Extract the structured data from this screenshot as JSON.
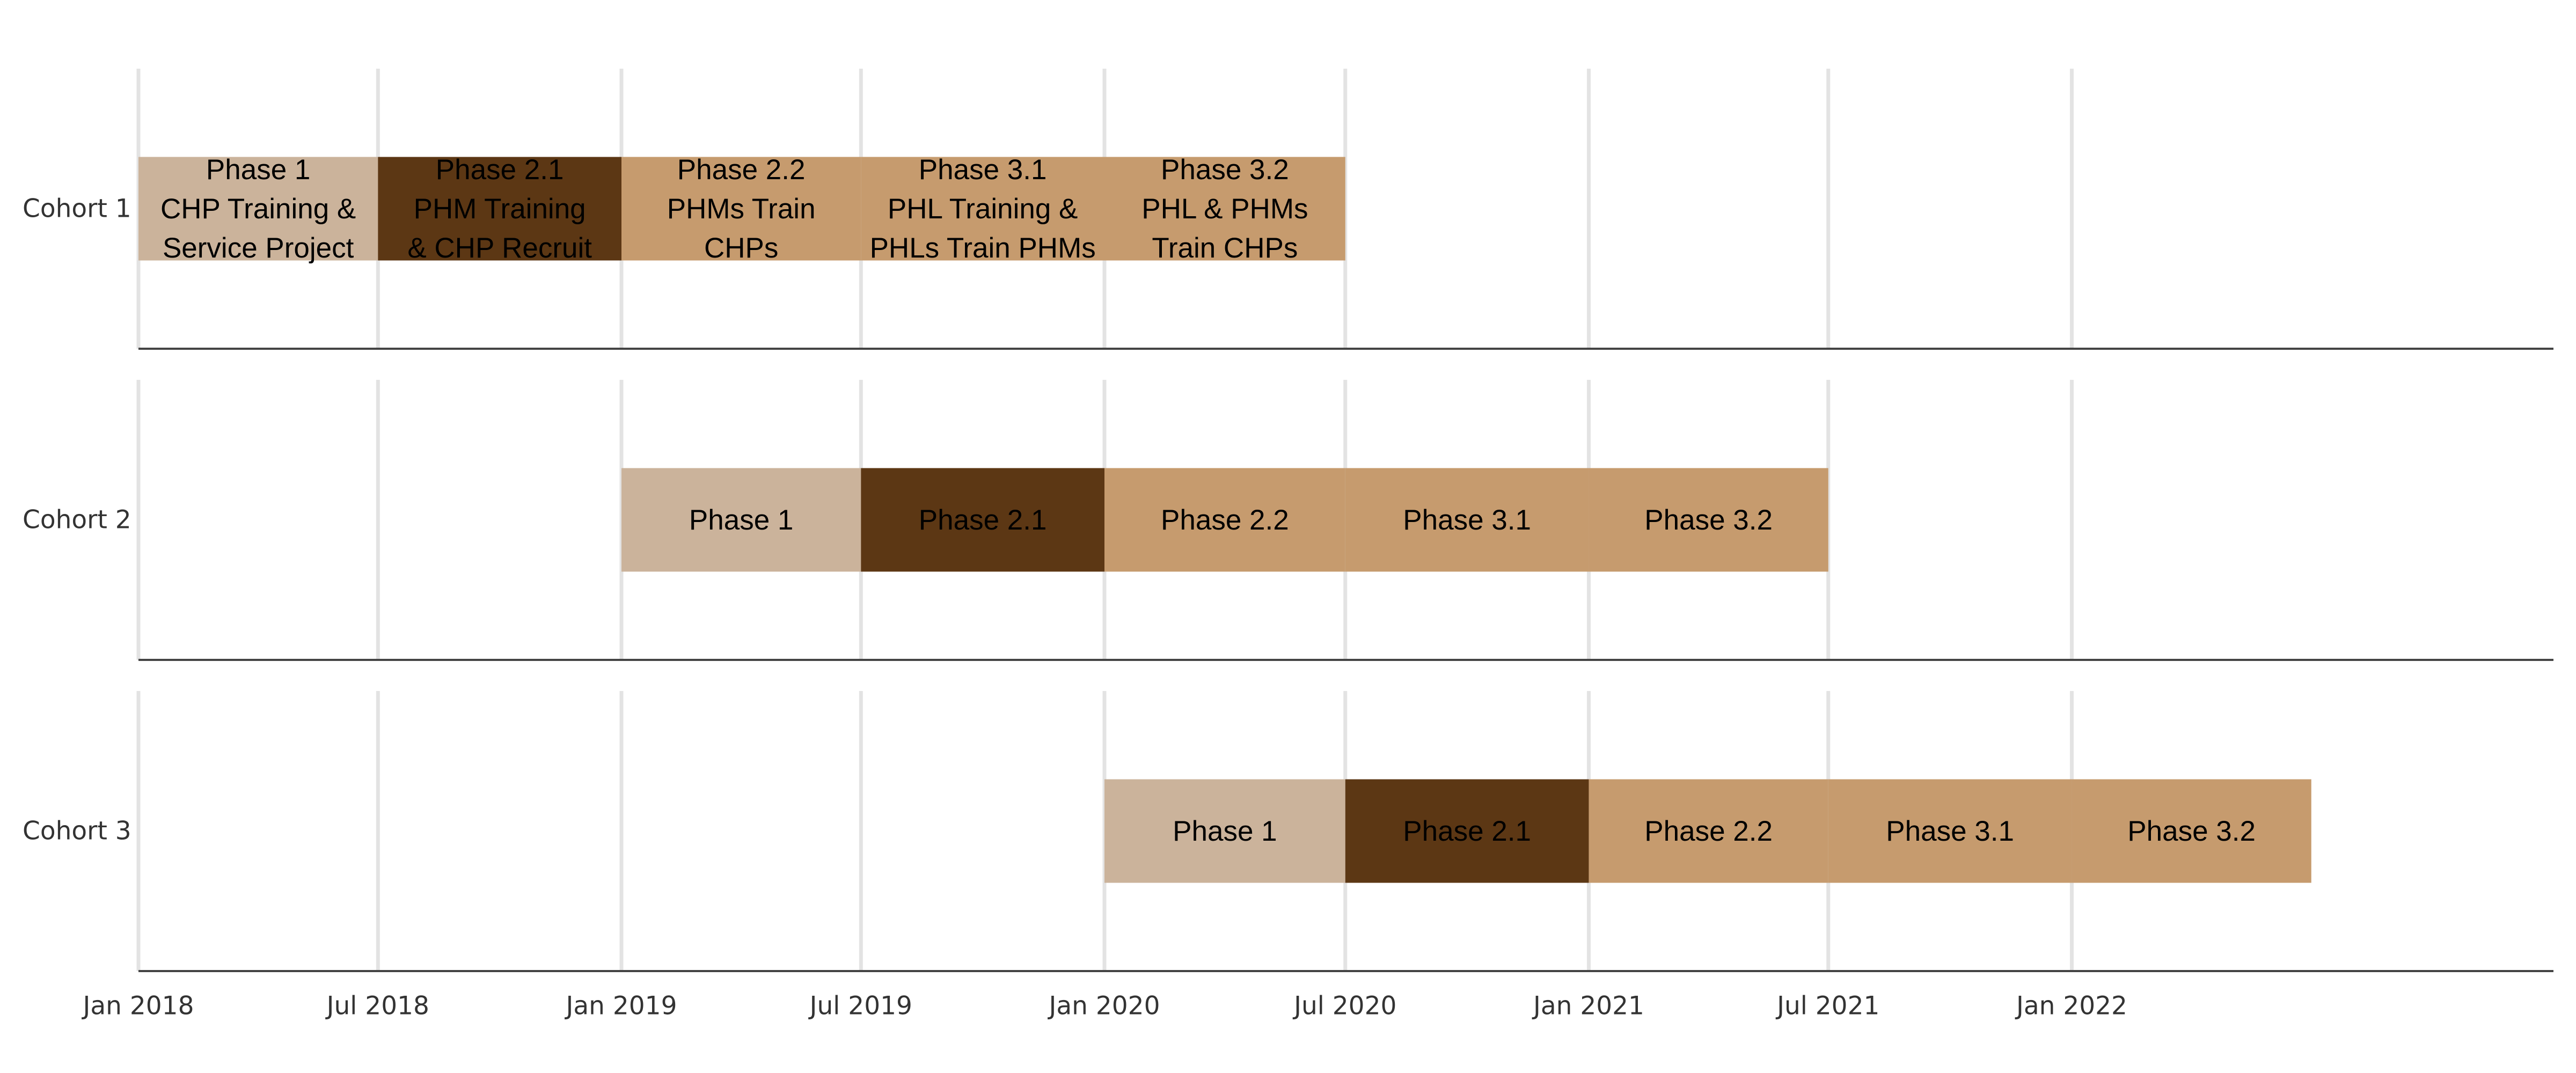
{
  "chart_data": {
    "type": "gantt",
    "x_axis": {
      "range": [
        "2018-01-01",
        "2022-12-31"
      ],
      "ticks": [
        "2018-01-01",
        "2018-07-01",
        "2019-01-01",
        "2019-07-01",
        "2020-01-01",
        "2020-07-01",
        "2021-01-01",
        "2021-07-01",
        "2022-01-01"
      ],
      "tick_labels": [
        "Jan 2018",
        "Jul 2018",
        "Jan 2019",
        "Jul 2019",
        "Jan 2020",
        "Jul 2020",
        "Jan 2021",
        "Jul 2021",
        "Jan 2022"
      ],
      "grid": true
    },
    "categories": [
      "Cohort 1",
      "Cohort 2",
      "Cohort 3"
    ],
    "tasks": [
      {
        "cohort": "Cohort 1",
        "label": "Phase 1\nCHP Training &\nService Project",
        "start": "2018-01-01",
        "end": "2018-07-01",
        "color": "#CBB39B"
      },
      {
        "cohort": "Cohort 1",
        "label": "Phase 2.1\nPHM Training\n& CHP Recruit",
        "start": "2018-07-01",
        "end": "2019-01-01",
        "color": "#5C3714"
      },
      {
        "cohort": "Cohort 1",
        "label": "Phase 2.2\nPHMs Train\nCHPs",
        "start": "2019-01-01",
        "end": "2019-07-01",
        "color": "#C69B6E"
      },
      {
        "cohort": "Cohort 1",
        "label": "Phase 3.1\nPHL Training &\nPHLs Train PHMs",
        "start": "2019-07-01",
        "end": "2020-01-01",
        "color": "#C69B6E"
      },
      {
        "cohort": "Cohort 1",
        "label": "Phase 3.2\nPHL & PHMs\nTrain CHPs",
        "start": "2020-01-01",
        "end": "2020-07-01",
        "color": "#C69B6E"
      },
      {
        "cohort": "Cohort 2",
        "label": "Phase 1",
        "start": "2019-01-01",
        "end": "2019-07-01",
        "color": "#CBB39B"
      },
      {
        "cohort": "Cohort 2",
        "label": "Phase 2.1",
        "start": "2019-07-01",
        "end": "2020-01-01",
        "color": "#5C3714"
      },
      {
        "cohort": "Cohort 2",
        "label": "Phase 2.2",
        "start": "2020-01-01",
        "end": "2020-07-01",
        "color": "#C69B6E"
      },
      {
        "cohort": "Cohort 2",
        "label": "Phase 3.1",
        "start": "2020-07-01",
        "end": "2021-01-01",
        "color": "#C69B6E"
      },
      {
        "cohort": "Cohort 2",
        "label": "Phase 3.2",
        "start": "2021-01-01",
        "end": "2021-07-01",
        "color": "#C69B6E"
      },
      {
        "cohort": "Cohort 3",
        "label": "Phase 1",
        "start": "2020-01-01",
        "end": "2020-07-01",
        "color": "#CBB39B"
      },
      {
        "cohort": "Cohort 3",
        "label": "Phase 2.1",
        "start": "2020-07-01",
        "end": "2021-01-01",
        "color": "#5C3714"
      },
      {
        "cohort": "Cohort 3",
        "label": "Phase 2.2",
        "start": "2021-01-01",
        "end": "2021-07-01",
        "color": "#C69B6E"
      },
      {
        "cohort": "Cohort 3",
        "label": "Phase 3.1",
        "start": "2021-07-01",
        "end": "2022-01-01",
        "color": "#C69B6E"
      },
      {
        "cohort": "Cohort 3",
        "label": "Phase 3.2",
        "start": "2022-01-01",
        "end": "2022-07-01",
        "color": "#C69B6E"
      }
    ]
  }
}
